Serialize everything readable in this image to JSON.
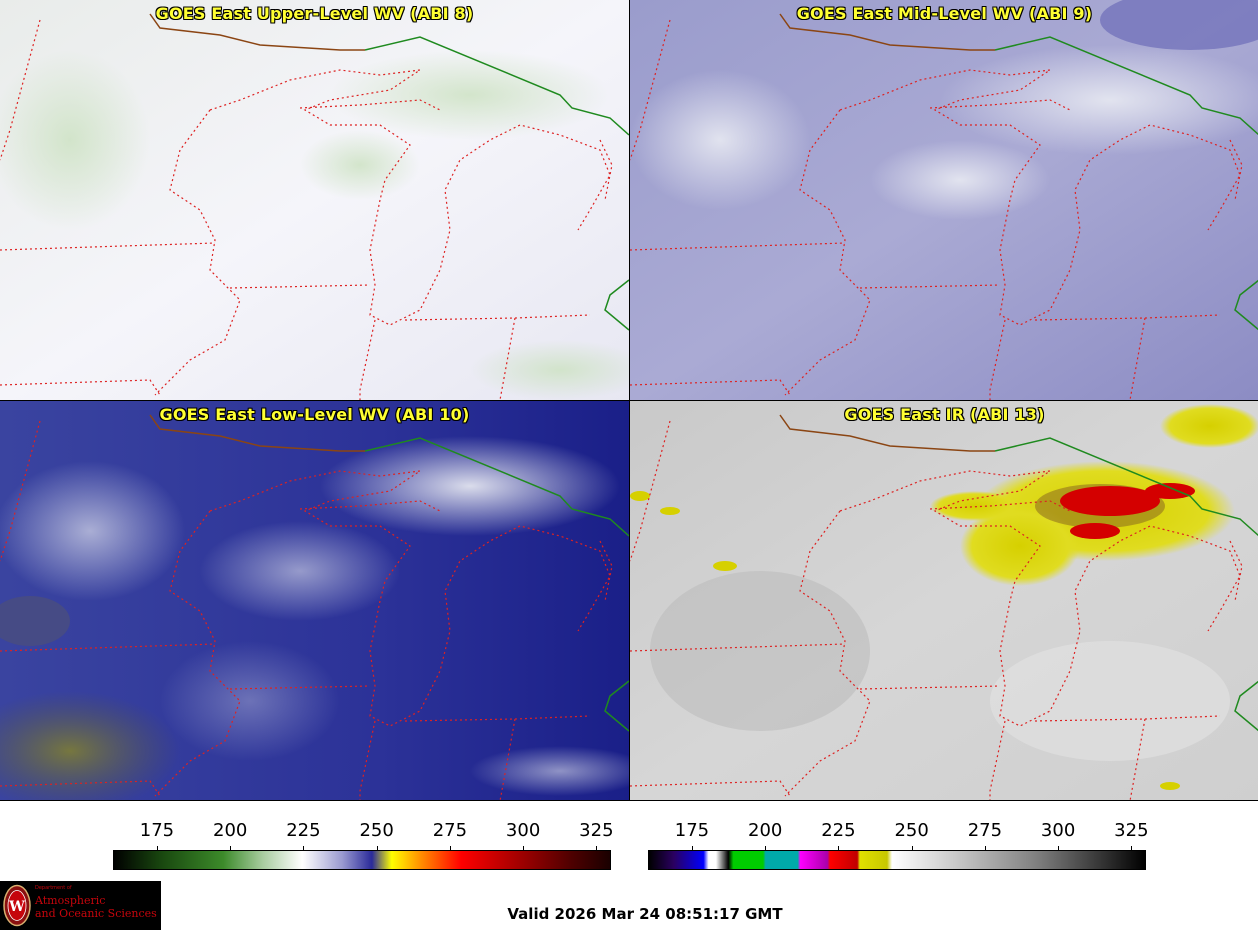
{
  "panels": [
    {
      "id": "upper",
      "title": "GOES East Upper-Level WV (ABI 8)"
    },
    {
      "id": "mid",
      "title": "GOES East Mid-Level WV (ABI 9)"
    },
    {
      "id": "low",
      "title": "GOES East Low-Level WV (ABI 10)"
    },
    {
      "id": "ir",
      "title": "GOES East IR (ABI 13)"
    }
  ],
  "colorbars": [
    {
      "id": "wv",
      "ticks": [
        "175",
        "200",
        "225",
        "250",
        "275",
        "300",
        "325"
      ]
    },
    {
      "id": "ir",
      "ticks": [
        "175",
        "200",
        "225",
        "250",
        "275",
        "300",
        "325"
      ]
    }
  ],
  "valid_time": "Valid 2026 Mar 24 08:51:17 GMT",
  "logo": {
    "line1": "Department of",
    "line2": "Atmospheric",
    "line3": "and Oceanic Sciences"
  },
  "colors": {
    "border_state": "#dd2222",
    "border_intl": "#1f8a1f",
    "coast": "#8b4513",
    "title": "#ffff33"
  }
}
